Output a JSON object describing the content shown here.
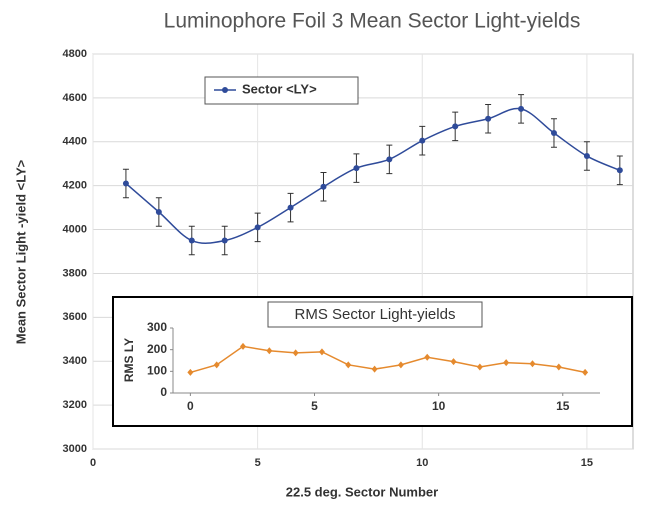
{
  "chart_data": [
    {
      "type": "line",
      "title": "Luminophore Foil 3 Mean Sector Light-yields",
      "xlabel": "22.5 deg. Sector Number",
      "ylabel": "Mean Sector Light -yield  <LY>",
      "x": [
        1,
        2,
        3,
        4,
        5,
        6,
        7,
        8,
        9,
        10,
        11,
        12,
        13,
        14,
        15,
        16
      ],
      "series": [
        {
          "name": "Sector <LY>",
          "color": "#2f4b9a",
          "values": [
            4210,
            4080,
            3950,
            3950,
            4010,
            4100,
            4195,
            4280,
            4320,
            4405,
            4470,
            4505,
            4550,
            4440,
            4335,
            4270
          ],
          "errors": [
            65,
            65,
            65,
            65,
            65,
            65,
            65,
            65,
            65,
            65,
            65,
            65,
            65,
            65,
            65,
            65
          ]
        }
      ],
      "xlim": [
        0,
        16.4
      ],
      "xticks": [
        0,
        5,
        10,
        15
      ],
      "ylim": [
        3000,
        4800
      ],
      "yticks": [
        3000,
        3200,
        3400,
        3600,
        3800,
        4000,
        4200,
        4400,
        4600,
        4800
      ],
      "grid": true,
      "smooth": true
    },
    {
      "type": "line",
      "title": "RMS Sector Light-yields",
      "ylabel": "RMS LY",
      "x": [
        0,
        1.06,
        2.12,
        3.18,
        4.24,
        5.3,
        6.36,
        7.42,
        8.48,
        9.54,
        10.6,
        11.66,
        12.72,
        13.78,
        14.84,
        15.9
      ],
      "series": [
        {
          "name": null,
          "color": "#e58a2e",
          "values": [
            95,
            130,
            215,
            195,
            185,
            190,
            130,
            110,
            130,
            165,
            145,
            120,
            140,
            135,
            120,
            95
          ]
        }
      ],
      "xlim": [
        -0.7,
        16.5
      ],
      "xticks": [
        0,
        5,
        10,
        15
      ],
      "ylim": [
        0,
        300
      ],
      "yticks": [
        0,
        100,
        200,
        300
      ],
      "grid": false,
      "smooth": false
    }
  ]
}
